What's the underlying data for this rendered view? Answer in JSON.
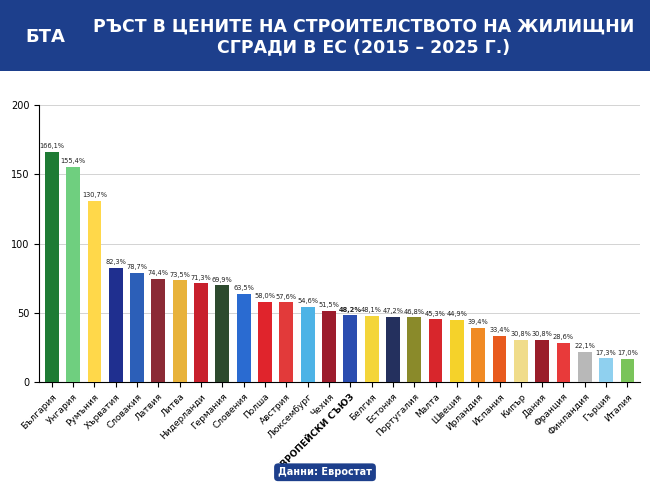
{
  "chart_data": {
    "type": "bar",
    "title": "РЪСТ В ЦЕНИТЕ НА СТРОИТЕЛСТВОТО НА ЖИЛИЩНИ СГРАДИ В ЕС (2015 – 2025 Г.)",
    "annotations": [
      "БТА",
      "Данни: Евростат"
    ],
    "categories": [
      "България",
      "Унгария",
      "Румъния",
      "Хърватия",
      "Словакия",
      "Латвия",
      "Литва",
      "Нидерланди",
      "Германия",
      "Словения",
      "Полша",
      "Австрия",
      "Люксембург",
      "Чехия",
      "ЕВРОПЕЙСКИ СЪЮЗ",
      "Белгия",
      "Естония",
      "Португалия",
      "Малта",
      "Швеция",
      "Ирландия",
      "Испания",
      "Кипър",
      "Дания",
      "Франция",
      "Финландия",
      "Гърция",
      "Италия"
    ],
    "values": [
      166.1,
      155.4,
      130.7,
      82.3,
      78.7,
      74.4,
      73.5,
      71.3,
      69.9,
      63.5,
      58.0,
      57.6,
      54.6,
      51.5,
      48.2,
      48.1,
      47.2,
      46.8,
      45.3,
      44.9,
      39.4,
      33.4,
      30.8,
      30.8,
      28.6,
      22.1,
      17.3,
      17.0
    ],
    "value_labels": [
      "166,1%",
      "155,4%",
      "130,7%",
      "82,3%",
      "78,7%",
      "74,4%",
      "73,5%",
      "71,3%",
      "69,9%",
      "63,5%",
      "58,0%",
      "57,6%",
      "54,6%",
      "51,5%",
      "48,2%",
      "48,1%",
      "47,2%",
      "46,8%",
      "45,3%",
      "44,9%",
      "39,4%",
      "33,4%",
      "30,8%",
      "30,8%",
      "28,6%",
      "22,1%",
      "17,3%",
      "17,0%"
    ],
    "colors": [
      "#1e7b34",
      "#6fcf7f",
      "#ffd84a",
      "#1f2f8f",
      "#2c5fb8",
      "#8b2a35",
      "#e8b23a",
      "#c8202c",
      "#2d4a2e",
      "#2a6bd1",
      "#e0242c",
      "#e23a3a",
      "#4db3e6",
      "#9c1c2c",
      "#2a4db0",
      "#f4d53a",
      "#24305e",
      "#8a8a2a",
      "#d8262c",
      "#f5d22a",
      "#f08a24",
      "#e85a1e",
      "#f0dc8a",
      "#9a1e2a",
      "#e83a3a",
      "#b8b8b8",
      "#8fd0ef",
      "#7ac45a"
    ],
    "ylim": [
      0,
      200
    ],
    "yticks": [
      0,
      50,
      100,
      150,
      200
    ],
    "grid": true,
    "data_labels": true
  }
}
